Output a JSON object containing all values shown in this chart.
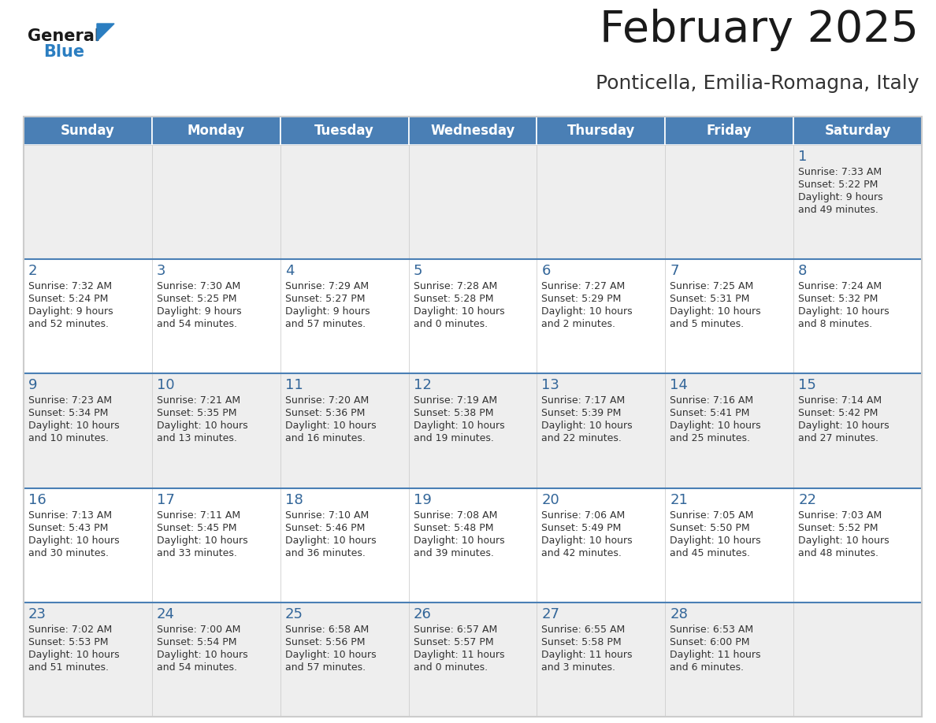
{
  "title": "February 2025",
  "subtitle": "Ponticella, Emilia-Romagna, Italy",
  "days_of_week": [
    "Sunday",
    "Monday",
    "Tuesday",
    "Wednesday",
    "Thursday",
    "Friday",
    "Saturday"
  ],
  "header_bg": "#4a7fb5",
  "header_text": "#ffffff",
  "row_bg": [
    "#eeeeee",
    "#ffffff",
    "#eeeeee",
    "#ffffff",
    "#eeeeee"
  ],
  "cell_border_color": "#cccccc",
  "week_separator_color": "#4a7fb5",
  "day_num_color": "#336699",
  "detail_color": "#333333",
  "title_color": "#1a1a1a",
  "subtitle_color": "#333333",
  "logo_general_color": "#1a1a1a",
  "logo_blue_color": "#2b7ec1",
  "calendar": [
    [
      null,
      null,
      null,
      null,
      null,
      null,
      {
        "day": 1,
        "sunrise": "7:33 AM",
        "sunset": "5:22 PM",
        "daylight": "9 hours and 49 minutes."
      }
    ],
    [
      {
        "day": 2,
        "sunrise": "7:32 AM",
        "sunset": "5:24 PM",
        "daylight": "9 hours and 52 minutes."
      },
      {
        "day": 3,
        "sunrise": "7:30 AM",
        "sunset": "5:25 PM",
        "daylight": "9 hours and 54 minutes."
      },
      {
        "day": 4,
        "sunrise": "7:29 AM",
        "sunset": "5:27 PM",
        "daylight": "9 hours and 57 minutes."
      },
      {
        "day": 5,
        "sunrise": "7:28 AM",
        "sunset": "5:28 PM",
        "daylight": "10 hours and 0 minutes."
      },
      {
        "day": 6,
        "sunrise": "7:27 AM",
        "sunset": "5:29 PM",
        "daylight": "10 hours and 2 minutes."
      },
      {
        "day": 7,
        "sunrise": "7:25 AM",
        "sunset": "5:31 PM",
        "daylight": "10 hours and 5 minutes."
      },
      {
        "day": 8,
        "sunrise": "7:24 AM",
        "sunset": "5:32 PM",
        "daylight": "10 hours and 8 minutes."
      }
    ],
    [
      {
        "day": 9,
        "sunrise": "7:23 AM",
        "sunset": "5:34 PM",
        "daylight": "10 hours and 10 minutes."
      },
      {
        "day": 10,
        "sunrise": "7:21 AM",
        "sunset": "5:35 PM",
        "daylight": "10 hours and 13 minutes."
      },
      {
        "day": 11,
        "sunrise": "7:20 AM",
        "sunset": "5:36 PM",
        "daylight": "10 hours and 16 minutes."
      },
      {
        "day": 12,
        "sunrise": "7:19 AM",
        "sunset": "5:38 PM",
        "daylight": "10 hours and 19 minutes."
      },
      {
        "day": 13,
        "sunrise": "7:17 AM",
        "sunset": "5:39 PM",
        "daylight": "10 hours and 22 minutes."
      },
      {
        "day": 14,
        "sunrise": "7:16 AM",
        "sunset": "5:41 PM",
        "daylight": "10 hours and 25 minutes."
      },
      {
        "day": 15,
        "sunrise": "7:14 AM",
        "sunset": "5:42 PM",
        "daylight": "10 hours and 27 minutes."
      }
    ],
    [
      {
        "day": 16,
        "sunrise": "7:13 AM",
        "sunset": "5:43 PM",
        "daylight": "10 hours and 30 minutes."
      },
      {
        "day": 17,
        "sunrise": "7:11 AM",
        "sunset": "5:45 PM",
        "daylight": "10 hours and 33 minutes."
      },
      {
        "day": 18,
        "sunrise": "7:10 AM",
        "sunset": "5:46 PM",
        "daylight": "10 hours and 36 minutes."
      },
      {
        "day": 19,
        "sunrise": "7:08 AM",
        "sunset": "5:48 PM",
        "daylight": "10 hours and 39 minutes."
      },
      {
        "day": 20,
        "sunrise": "7:06 AM",
        "sunset": "5:49 PM",
        "daylight": "10 hours and 42 minutes."
      },
      {
        "day": 21,
        "sunrise": "7:05 AM",
        "sunset": "5:50 PM",
        "daylight": "10 hours and 45 minutes."
      },
      {
        "day": 22,
        "sunrise": "7:03 AM",
        "sunset": "5:52 PM",
        "daylight": "10 hours and 48 minutes."
      }
    ],
    [
      {
        "day": 23,
        "sunrise": "7:02 AM",
        "sunset": "5:53 PM",
        "daylight": "10 hours and 51 minutes."
      },
      {
        "day": 24,
        "sunrise": "7:00 AM",
        "sunset": "5:54 PM",
        "daylight": "10 hours and 54 minutes."
      },
      {
        "day": 25,
        "sunrise": "6:58 AM",
        "sunset": "5:56 PM",
        "daylight": "10 hours and 57 minutes."
      },
      {
        "day": 26,
        "sunrise": "6:57 AM",
        "sunset": "5:57 PM",
        "daylight": "11 hours and 0 minutes."
      },
      {
        "day": 27,
        "sunrise": "6:55 AM",
        "sunset": "5:58 PM",
        "daylight": "11 hours and 3 minutes."
      },
      {
        "day": 28,
        "sunrise": "6:53 AM",
        "sunset": "6:00 PM",
        "daylight": "11 hours and 6 minutes."
      },
      null
    ]
  ]
}
